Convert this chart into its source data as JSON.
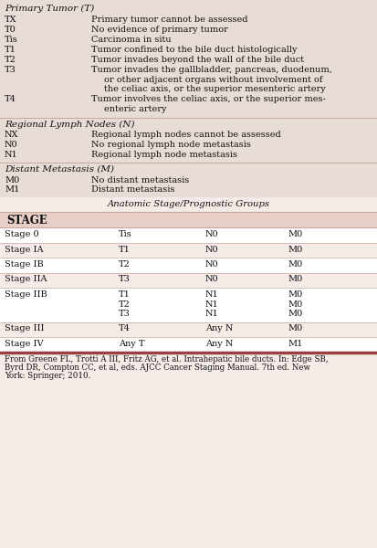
{
  "bg_top": "#e8ddd6",
  "bg_bottom": "#f5ece8",
  "header_bg": "#e8cfc8",
  "white_row": "#ffffff",
  "alt_row": "#f5ece8",
  "sep_color": "#c8a898",
  "bottom_border": "#9b4040",
  "text_color": "#111111",
  "primary_tumor_header": "Primary Tumor (T)",
  "primary_tumor_rows": [
    [
      "TX",
      "Primary tumor cannot be assessed"
    ],
    [
      "T0",
      "No evidence of primary tumor"
    ],
    [
      "Tis",
      "Carcinoma in situ"
    ],
    [
      "T1",
      "Tumor confined to the bile duct histologically"
    ],
    [
      "T2",
      "Tumor invades beyond the wall of the bile duct"
    ],
    [
      "T3",
      [
        "Tumor invades the gallbladder, pancreas, duodenum,",
        "or other adjacent organs without involvement of",
        "the celiac axis, or the superior mesenteric artery"
      ]
    ],
    [
      "T4",
      [
        "Tumor involves the celiac axis, or the superior mes-",
        "enteric artery"
      ]
    ]
  ],
  "lymph_nodes_header": "Regional Lymph Nodes (N)",
  "lymph_nodes_rows": [
    [
      "NX",
      "Regional lymph nodes cannot be assessed"
    ],
    [
      "N0",
      "No regional lymph node metastasis"
    ],
    [
      "N1",
      "Regional lymph node metastasis"
    ]
  ],
  "metastasis_header": "Distant Metastasis (M)",
  "metastasis_rows": [
    [
      "M0",
      "No distant metastasis"
    ],
    [
      "M1",
      "Distant metastasis"
    ]
  ],
  "stage_subtitle": "Anatomic Stage/Prognostic Groups",
  "stage_header": "STAGE",
  "stage_rows": [
    [
      "Stage 0",
      [
        "Tis"
      ],
      [
        "N0"
      ],
      [
        "M0"
      ]
    ],
    [
      "Stage IA",
      [
        "T1"
      ],
      [
        "N0"
      ],
      [
        "M0"
      ]
    ],
    [
      "Stage IB",
      [
        "T2"
      ],
      [
        "N0"
      ],
      [
        "M0"
      ]
    ],
    [
      "Stage IIA",
      [
        "T3"
      ],
      [
        "N0"
      ],
      [
        "M0"
      ]
    ],
    [
      "Stage IIB",
      [
        "T1",
        "T2",
        "T3"
      ],
      [
        "N1",
        "N1",
        "N1"
      ],
      [
        "M0",
        "M0",
        "M0"
      ]
    ],
    [
      "Stage III",
      [
        "T4"
      ],
      [
        "Any N"
      ],
      [
        "M0"
      ]
    ],
    [
      "Stage IV",
      [
        "Any T"
      ],
      [
        "Any N"
      ],
      [
        "M1"
      ]
    ]
  ],
  "footnote": "From Greene FL, Trotti A III, Fritz AG, et al. Intrahepatic bile ducts. In: Edge SB,\nByrd DR, Compton CC, et al, eds. AJCC Cancer Staging Manual. 7th ed. New\nYork: Springer; 2010."
}
